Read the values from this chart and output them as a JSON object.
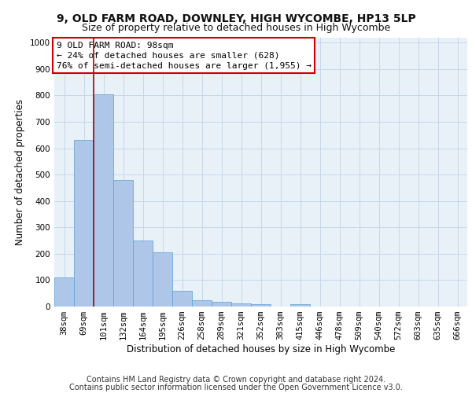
{
  "title": "9, OLD FARM ROAD, DOWNLEY, HIGH WYCOMBE, HP13 5LP",
  "subtitle": "Size of property relative to detached houses in High Wycombe",
  "xlabel": "Distribution of detached houses by size in High Wycombe",
  "ylabel": "Number of detached properties",
  "categories": [
    "38sqm",
    "69sqm",
    "101sqm",
    "132sqm",
    "164sqm",
    "195sqm",
    "226sqm",
    "258sqm",
    "289sqm",
    "321sqm",
    "352sqm",
    "383sqm",
    "415sqm",
    "446sqm",
    "478sqm",
    "509sqm",
    "540sqm",
    "572sqm",
    "603sqm",
    "635sqm",
    "666sqm"
  ],
  "values": [
    110,
    630,
    805,
    478,
    250,
    205,
    60,
    25,
    17,
    12,
    8,
    0,
    8,
    0,
    0,
    0,
    0,
    0,
    0,
    0,
    0
  ],
  "bar_color": "#aec6e8",
  "bar_edge_color": "#5a9fd4",
  "grid_color": "#c8d8e8",
  "background_color": "#e8f0f8",
  "vline_x_index": 2,
  "vline_color": "#aa0000",
  "annotation_text": "9 OLD FARM ROAD: 98sqm\n← 24% of detached houses are smaller (628)\n76% of semi-detached houses are larger (1,955) →",
  "annotation_box_color": "#ffffff",
  "annotation_box_edge": "#cc0000",
  "ylim": [
    0,
    1020
  ],
  "yticks": [
    0,
    100,
    200,
    300,
    400,
    500,
    600,
    700,
    800,
    900,
    1000
  ],
  "footer1": "Contains HM Land Registry data © Crown copyright and database right 2024.",
  "footer2": "Contains public sector information licensed under the Open Government Licence v3.0.",
  "title_fontsize": 10,
  "subtitle_fontsize": 9,
  "axis_label_fontsize": 8.5,
  "tick_fontsize": 7.5,
  "annotation_fontsize": 8,
  "footer_fontsize": 7
}
